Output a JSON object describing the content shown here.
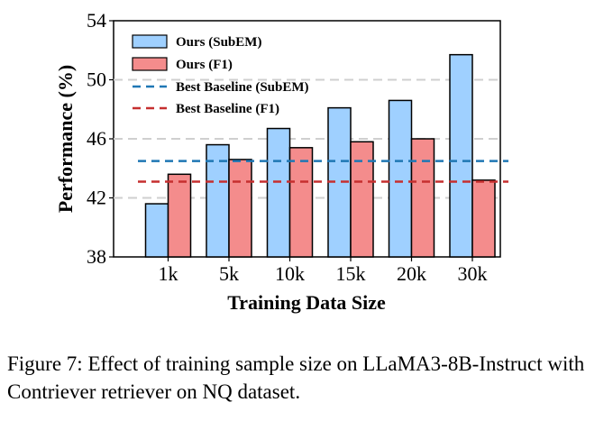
{
  "chart_data": {
    "type": "bar",
    "categories": [
      "1k",
      "5k",
      "10k",
      "15k",
      "20k",
      "30k"
    ],
    "series": [
      {
        "name": "Ours (SubEM)",
        "values": [
          41.6,
          45.6,
          46.7,
          48.1,
          48.6,
          51.7
        ],
        "color": "#9fd0ff"
      },
      {
        "name": "Ours (F1)",
        "values": [
          43.6,
          44.6,
          45.4,
          45.8,
          46.0,
          43.2
        ],
        "color": "#f48c8c"
      }
    ],
    "baselines": [
      {
        "name": "Best Baseline (SubEM)",
        "value": 44.5,
        "color": "#1f77b4"
      },
      {
        "name": "Best Baseline (F1)",
        "value": 43.1,
        "color": "#c62f2f"
      }
    ],
    "title": "",
    "xlabel": "Training Data Size",
    "ylabel": "Performance (%)",
    "ylim": [
      38,
      54
    ],
    "yticks": [
      38,
      42,
      46,
      50,
      54
    ],
    "grid": true,
    "legend": "top-left"
  },
  "caption": "Figure 7: Effect of training sample size on LLaMA3-8B-Instruct with Contriever retriever on NQ dataset."
}
